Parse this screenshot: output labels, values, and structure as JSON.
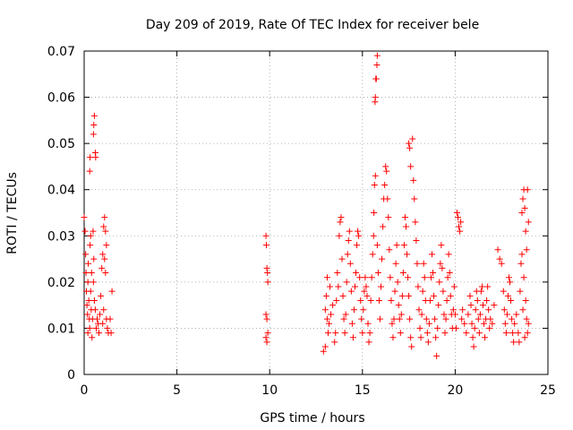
{
  "chart_data": {
    "type": "scatter",
    "title": "Day 209 of 2019, Rate Of TEC Index for receiver bele",
    "xlabel": "GPS time / hours",
    "ylabel": "ROTI / TECUs",
    "xlim": [
      0,
      25
    ],
    "ylim": [
      0,
      0.07
    ],
    "x_ticks": [
      0,
      5,
      10,
      15,
      20,
      25
    ],
    "y_ticks": [
      0,
      0.01,
      0.02,
      0.03,
      0.04,
      0.05,
      0.06,
      0.07
    ],
    "x_tick_labels": [
      "0",
      "5",
      "10",
      "15",
      "20",
      "25"
    ],
    "y_tick_labels": [
      "0",
      "0.01",
      "0.02",
      "0.03",
      "0.04",
      "0.05",
      "0.06",
      "0.07"
    ],
    "grid": true,
    "marker": "+",
    "series_color": "#ff0000",
    "series": [
      {
        "points": [
          [
            0.0,
            0.034
          ],
          [
            0.05,
            0.031
          ],
          [
            0.08,
            0.026
          ],
          [
            0.1,
            0.022
          ],
          [
            0.12,
            0.018
          ],
          [
            0.15,
            0.015
          ],
          [
            0.18,
            0.013
          ],
          [
            0.2,
            0.02
          ],
          [
            0.22,
            0.024
          ],
          [
            0.25,
            0.016
          ],
          [
            0.28,
            0.012
          ],
          [
            0.3,
            0.01
          ],
          [
            0.32,
            0.028
          ],
          [
            0.35,
            0.018
          ],
          [
            0.38,
            0.014
          ],
          [
            0.4,
            0.022
          ],
          [
            0.42,
            0.008
          ],
          [
            0.45,
            0.012
          ],
          [
            0.48,
            0.031
          ],
          [
            0.5,
            0.02
          ],
          [
            0.52,
            0.025
          ],
          [
            0.3,
            0.044
          ],
          [
            0.32,
            0.047
          ],
          [
            0.5,
            0.052
          ],
          [
            0.52,
            0.054
          ],
          [
            0.55,
            0.056
          ],
          [
            0.6,
            0.048
          ],
          [
            0.62,
            0.047
          ],
          [
            0.55,
            0.016
          ],
          [
            0.6,
            0.014
          ],
          [
            0.65,
            0.01
          ],
          [
            0.7,
            0.012
          ],
          [
            0.75,
            0.011
          ],
          [
            0.8,
            0.009
          ],
          [
            0.85,
            0.013
          ],
          [
            0.9,
            0.017
          ],
          [
            0.95,
            0.023
          ],
          [
            1.0,
            0.026
          ],
          [
            1.05,
            0.032
          ],
          [
            1.1,
            0.034
          ],
          [
            1.15,
            0.031
          ],
          [
            1.2,
            0.028
          ],
          [
            1.1,
            0.025
          ],
          [
            1.15,
            0.022
          ],
          [
            1.2,
            0.012
          ],
          [
            1.25,
            0.01
          ],
          [
            1.3,
            0.009
          ],
          [
            1.0,
            0.011
          ],
          [
            1.05,
            0.014
          ],
          [
            1.5,
            0.018
          ],
          [
            1.45,
            0.009
          ],
          [
            1.4,
            0.012
          ],
          [
            0.2,
            0.009
          ],
          [
            0.35,
            0.03
          ],
          [
            9.8,
            0.03
          ],
          [
            9.82,
            0.028
          ],
          [
            9.85,
            0.023
          ],
          [
            9.88,
            0.022
          ],
          [
            9.9,
            0.02
          ],
          [
            9.8,
            0.013
          ],
          [
            9.85,
            0.012
          ],
          [
            9.8,
            0.008
          ],
          [
            9.85,
            0.007
          ],
          [
            9.9,
            0.009
          ],
          [
            12.9,
            0.005
          ],
          [
            13.0,
            0.006
          ],
          [
            13.0,
            0.014
          ],
          [
            13.05,
            0.017
          ],
          [
            13.1,
            0.021
          ],
          [
            13.1,
            0.012
          ],
          [
            13.15,
            0.009
          ],
          [
            13.2,
            0.011
          ],
          [
            13.25,
            0.019
          ],
          [
            13.3,
            0.013
          ],
          [
            13.4,
            0.015
          ],
          [
            13.5,
            0.007
          ],
          [
            13.55,
            0.009
          ],
          [
            13.6,
            0.016
          ],
          [
            13.65,
            0.022
          ],
          [
            13.7,
            0.019
          ],
          [
            13.75,
            0.03
          ],
          [
            13.8,
            0.033
          ],
          [
            13.85,
            0.034
          ],
          [
            13.9,
            0.025
          ],
          [
            13.95,
            0.017
          ],
          [
            14.0,
            0.012
          ],
          [
            14.05,
            0.009
          ],
          [
            14.1,
            0.013
          ],
          [
            14.15,
            0.02
          ],
          [
            14.2,
            0.026
          ],
          [
            14.25,
            0.029
          ],
          [
            14.3,
            0.031
          ],
          [
            14.35,
            0.024
          ],
          [
            14.4,
            0.018
          ],
          [
            14.45,
            0.011
          ],
          [
            14.5,
            0.008
          ],
          [
            14.55,
            0.014
          ],
          [
            14.6,
            0.019
          ],
          [
            14.65,
            0.022
          ],
          [
            14.7,
            0.028
          ],
          [
            14.75,
            0.031
          ],
          [
            14.8,
            0.03
          ],
          [
            14.85,
            0.021
          ],
          [
            14.9,
            0.016
          ],
          [
            14.95,
            0.012
          ],
          [
            15.0,
            0.009
          ],
          [
            15.05,
            0.014
          ],
          [
            15.1,
            0.018
          ],
          [
            15.15,
            0.021
          ],
          [
            15.2,
            0.019
          ],
          [
            15.25,
            0.017
          ],
          [
            15.3,
            0.011
          ],
          [
            15.35,
            0.007
          ],
          [
            15.4,
            0.009
          ],
          [
            15.45,
            0.016
          ],
          [
            15.5,
            0.021
          ],
          [
            15.55,
            0.026
          ],
          [
            15.6,
            0.03
          ],
          [
            15.62,
            0.035
          ],
          [
            15.65,
            0.041
          ],
          [
            15.7,
            0.043
          ],
          [
            15.68,
            0.059
          ],
          [
            15.7,
            0.06
          ],
          [
            15.75,
            0.064
          ],
          [
            15.78,
            0.067
          ],
          [
            15.8,
            0.069
          ],
          [
            15.72,
            0.064
          ],
          [
            15.8,
            0.028
          ],
          [
            15.85,
            0.022
          ],
          [
            15.9,
            0.016
          ],
          [
            15.95,
            0.012
          ],
          [
            16.0,
            0.019
          ],
          [
            16.05,
            0.025
          ],
          [
            16.1,
            0.032
          ],
          [
            16.15,
            0.038
          ],
          [
            16.2,
            0.041
          ],
          [
            16.25,
            0.045
          ],
          [
            16.3,
            0.044
          ],
          [
            16.35,
            0.038
          ],
          [
            16.4,
            0.034
          ],
          [
            16.45,
            0.027
          ],
          [
            16.5,
            0.021
          ],
          [
            16.55,
            0.016
          ],
          [
            16.6,
            0.011
          ],
          [
            16.65,
            0.008
          ],
          [
            16.7,
            0.012
          ],
          [
            16.75,
            0.018
          ],
          [
            16.8,
            0.024
          ],
          [
            16.85,
            0.028
          ],
          [
            16.9,
            0.02
          ],
          [
            16.95,
            0.015
          ],
          [
            17.0,
            0.012
          ],
          [
            17.05,
            0.009
          ],
          [
            17.1,
            0.013
          ],
          [
            17.15,
            0.017
          ],
          [
            17.2,
            0.022
          ],
          [
            17.25,
            0.028
          ],
          [
            17.3,
            0.034
          ],
          [
            17.35,
            0.032
          ],
          [
            17.4,
            0.026
          ],
          [
            17.45,
            0.021
          ],
          [
            17.5,
            0.017
          ],
          [
            17.55,
            0.012
          ],
          [
            17.6,
            0.008
          ],
          [
            17.65,
            0.006
          ],
          [
            17.5,
            0.05
          ],
          [
            17.55,
            0.049
          ],
          [
            17.6,
            0.045
          ],
          [
            17.7,
            0.051
          ],
          [
            17.75,
            0.042
          ],
          [
            17.8,
            0.038
          ],
          [
            17.85,
            0.033
          ],
          [
            17.9,
            0.029
          ],
          [
            17.95,
            0.024
          ],
          [
            18.0,
            0.019
          ],
          [
            18.05,
            0.014
          ],
          [
            18.1,
            0.01
          ],
          [
            18.15,
            0.008
          ],
          [
            18.2,
            0.013
          ],
          [
            18.25,
            0.018
          ],
          [
            18.3,
            0.024
          ],
          [
            18.35,
            0.021
          ],
          [
            18.4,
            0.016
          ],
          [
            18.45,
            0.012
          ],
          [
            18.5,
            0.009
          ],
          [
            18.55,
            0.007
          ],
          [
            18.6,
            0.011
          ],
          [
            18.65,
            0.016
          ],
          [
            18.7,
            0.021
          ],
          [
            18.75,
            0.026
          ],
          [
            18.8,
            0.022
          ],
          [
            18.85,
            0.017
          ],
          [
            18.9,
            0.012
          ],
          [
            18.95,
            0.008
          ],
          [
            19.0,
            0.004
          ],
          [
            19.05,
            0.01
          ],
          [
            19.1,
            0.015
          ],
          [
            19.15,
            0.02
          ],
          [
            19.2,
            0.024
          ],
          [
            19.25,
            0.028
          ],
          [
            19.3,
            0.023
          ],
          [
            19.35,
            0.018
          ],
          [
            19.4,
            0.013
          ],
          [
            19.45,
            0.009
          ],
          [
            19.5,
            0.012
          ],
          [
            19.55,
            0.016
          ],
          [
            19.6,
            0.021
          ],
          [
            19.65,
            0.026
          ],
          [
            19.7,
            0.022
          ],
          [
            19.75,
            0.017
          ],
          [
            19.8,
            0.013
          ],
          [
            19.85,
            0.01
          ],
          [
            19.9,
            0.014
          ],
          [
            19.95,
            0.019
          ],
          [
            20.0,
            0.013
          ],
          [
            20.05,
            0.01
          ],
          [
            20.1,
            0.035
          ],
          [
            20.15,
            0.034
          ],
          [
            20.2,
            0.032
          ],
          [
            20.25,
            0.031
          ],
          [
            20.3,
            0.033
          ],
          [
            20.35,
            0.012
          ],
          [
            20.4,
            0.014
          ],
          [
            20.5,
            0.011
          ],
          [
            20.6,
            0.009
          ],
          [
            20.7,
            0.013
          ],
          [
            20.8,
            0.017
          ],
          [
            20.85,
            0.015
          ],
          [
            20.9,
            0.011
          ],
          [
            20.95,
            0.008
          ],
          [
            21.0,
            0.006
          ],
          [
            21.05,
            0.01
          ],
          [
            21.1,
            0.014
          ],
          [
            21.15,
            0.018
          ],
          [
            21.2,
            0.016
          ],
          [
            21.25,
            0.012
          ],
          [
            21.3,
            0.009
          ],
          [
            21.35,
            0.013
          ],
          [
            21.4,
            0.018
          ],
          [
            21.45,
            0.019
          ],
          [
            21.5,
            0.015
          ],
          [
            21.55,
            0.011
          ],
          [
            21.6,
            0.008
          ],
          [
            21.65,
            0.012
          ],
          [
            21.7,
            0.016
          ],
          [
            21.75,
            0.019
          ],
          [
            21.8,
            0.014
          ],
          [
            21.85,
            0.01
          ],
          [
            21.9,
            0.012
          ],
          [
            22.0,
            0.011
          ],
          [
            22.1,
            0.015
          ],
          [
            22.3,
            0.027
          ],
          [
            22.4,
            0.025
          ],
          [
            22.5,
            0.024
          ],
          [
            22.6,
            0.018
          ],
          [
            22.65,
            0.014
          ],
          [
            22.7,
            0.011
          ],
          [
            22.75,
            0.009
          ],
          [
            22.8,
            0.013
          ],
          [
            22.85,
            0.017
          ],
          [
            22.9,
            0.021
          ],
          [
            22.95,
            0.02
          ],
          [
            23.0,
            0.016
          ],
          [
            23.05,
            0.012
          ],
          [
            23.1,
            0.009
          ],
          [
            23.15,
            0.007
          ],
          [
            23.2,
            0.011
          ],
          [
            23.3,
            0.013
          ],
          [
            23.4,
            0.009
          ],
          [
            23.45,
            0.007
          ],
          [
            23.5,
            0.018
          ],
          [
            23.55,
            0.024
          ],
          [
            23.6,
            0.035
          ],
          [
            23.65,
            0.038
          ],
          [
            23.7,
            0.04
          ],
          [
            23.75,
            0.036
          ],
          [
            23.8,
            0.031
          ],
          [
            23.85,
            0.027
          ],
          [
            23.9,
            0.04
          ],
          [
            23.95,
            0.033
          ],
          [
            23.6,
            0.026
          ],
          [
            23.7,
            0.021
          ],
          [
            23.8,
            0.016
          ],
          [
            23.85,
            0.012
          ],
          [
            23.9,
            0.009
          ],
          [
            23.95,
            0.011
          ],
          [
            23.75,
            0.008
          ],
          [
            23.65,
            0.014
          ]
        ]
      }
    ]
  }
}
